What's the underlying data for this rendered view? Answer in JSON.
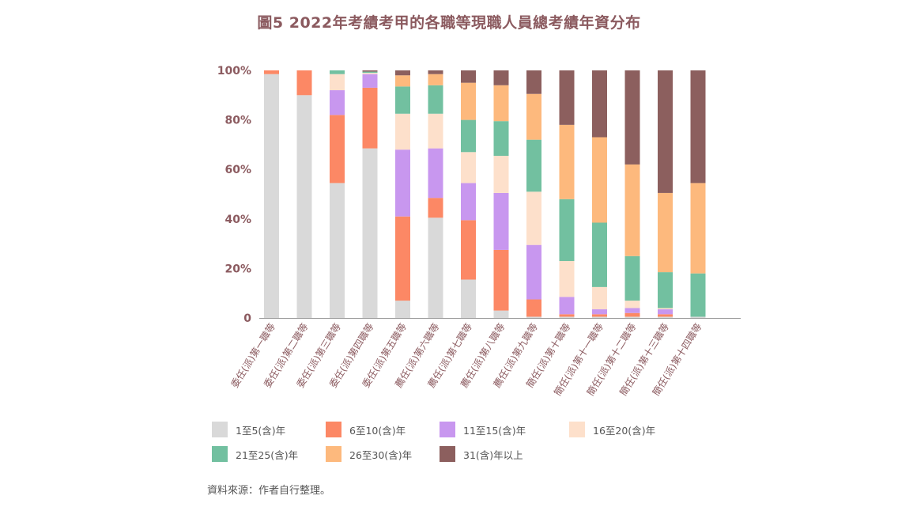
{
  "chart_data": {
    "type": "bar",
    "stacked": true,
    "title": "圖5 2022年考績考甲的各職等現職人員總考績年資分布",
    "xlabel": "",
    "ylabel": "",
    "ylim": [
      0,
      100
    ],
    "yticks": [
      "0",
      "20%",
      "40%",
      "60%",
      "80%",
      "100%"
    ],
    "categories": [
      "委任(派)第一職等",
      "委任(派)第二職等",
      "委任(派)第三職等",
      "委任(派)第四職等",
      "委任(派)第五職等",
      "薦任(派)第六職等",
      "薦任(派)第七職等",
      "薦任(派)第八職等",
      "薦任(派)第九職等",
      "簡任(派)第十職等",
      "簡任(派)第十一職等",
      "簡任(派)第十二職等",
      "簡任(派)第十三職等",
      "簡任(派)第十四職等"
    ],
    "series": [
      {
        "name": "1至5(含)年",
        "color": "#d9d9d9",
        "values": [
          98.5,
          90,
          54.5,
          68.5,
          7,
          40.5,
          15.5,
          3,
          0.5,
          0.5,
          0.5,
          0.5,
          0.5,
          0.5
        ]
      },
      {
        "name": "6至10(含)年",
        "color": "#fc8865",
        "values": [
          1.5,
          10,
          27.5,
          24.5,
          34,
          8,
          24,
          24.5,
          7,
          1,
          1,
          1.5,
          1,
          0
        ]
      },
      {
        "name": "11至15(含)年",
        "color": "#c897ef",
        "values": [
          0,
          0,
          10,
          5.5,
          27,
          20,
          15,
          23,
          22,
          7,
          2,
          2,
          2,
          0
        ]
      },
      {
        "name": "16至20(含)年",
        "color": "#fde0cb",
        "values": [
          0,
          0,
          6.5,
          0.5,
          14.5,
          14,
          12.5,
          15,
          21.5,
          14.5,
          9,
          3,
          0.5,
          0
        ]
      },
      {
        "name": "21至25(含)年",
        "color": "#72c0a0",
        "values": [
          0,
          0,
          1.5,
          0.5,
          11,
          11.5,
          13,
          14,
          21,
          25,
          26,
          18,
          14.5,
          17.5
        ]
      },
      {
        "name": "26至30(含)年",
        "color": "#fdb97d",
        "values": [
          0,
          0,
          0,
          0,
          4.5,
          4.5,
          15,
          14.5,
          18.5,
          30,
          34.5,
          37,
          32,
          36.5
        ]
      },
      {
        "name": "31(含)年以上",
        "color": "#8c5f5e",
        "values": [
          0,
          0,
          0,
          0.5,
          2,
          1.5,
          5,
          6,
          9.5,
          22,
          27,
          38,
          49.5,
          45.5
        ]
      }
    ]
  },
  "source_note": "資料來源：作者自行整理。"
}
